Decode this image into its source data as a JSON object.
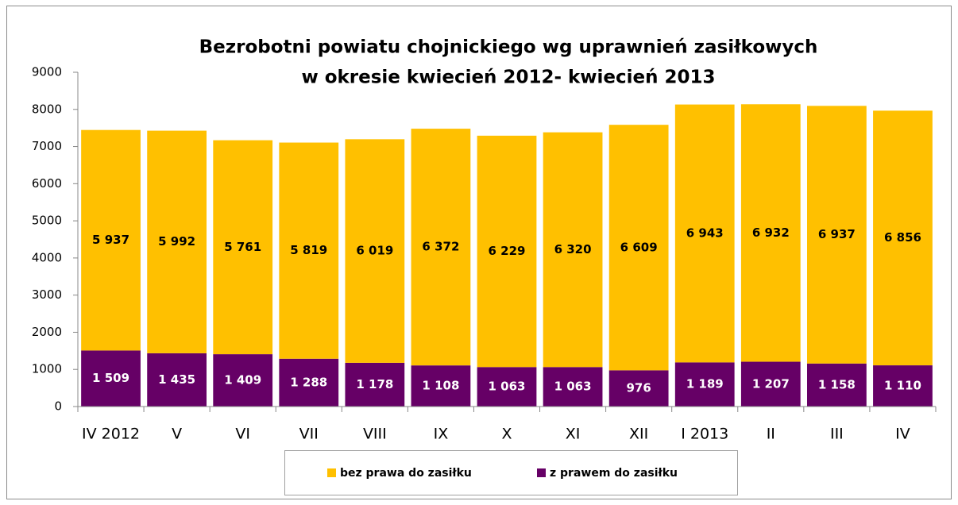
{
  "chart_data": {
    "type": "stacked_bar",
    "title": [
      "Bezrobotni powiatu chojnickiego wg uprawnień zasiłkowych",
      "w okresie kwiecień 2012- kwiecień 2013"
    ],
    "categories": [
      "IV 2012",
      "V",
      "VI",
      "VII",
      "VIII",
      "IX",
      "X",
      "XI",
      "XII",
      "I 2013",
      "II",
      "III",
      "IV"
    ],
    "series": [
      {
        "name": "bez prawa do zasiłku",
        "color": "#ffc000",
        "values": [
          5937,
          5992,
          5761,
          5819,
          6019,
          6372,
          6229,
          6320,
          6609,
          6943,
          6932,
          6937,
          6856
        ],
        "value_labels": [
          "5 937",
          "5 992",
          "5 761",
          "5 819",
          "6 019",
          "6 372",
          "6 229",
          "6 320",
          "6 609",
          "6 943",
          "6 932",
          "6 937",
          "6 856"
        ]
      },
      {
        "name": "z prawem do zasiłku",
        "color": "#660066",
        "values": [
          1509,
          1435,
          1409,
          1288,
          1178,
          1108,
          1063,
          1063,
          976,
          1189,
          1207,
          1158,
          1110
        ],
        "value_labels": [
          "1 509",
          "1 435",
          "1 409",
          "1 288",
          "1 178",
          "1 108",
          "1 063",
          "1 063",
          "976",
          "1 189",
          "1 207",
          "1 158",
          "1 110"
        ]
      }
    ],
    "ylim": [
      0,
      9000
    ],
    "yticks": [
      0,
      1000,
      2000,
      3000,
      4000,
      5000,
      6000,
      7000,
      8000,
      9000
    ],
    "grid": false,
    "legend": "bottom"
  }
}
